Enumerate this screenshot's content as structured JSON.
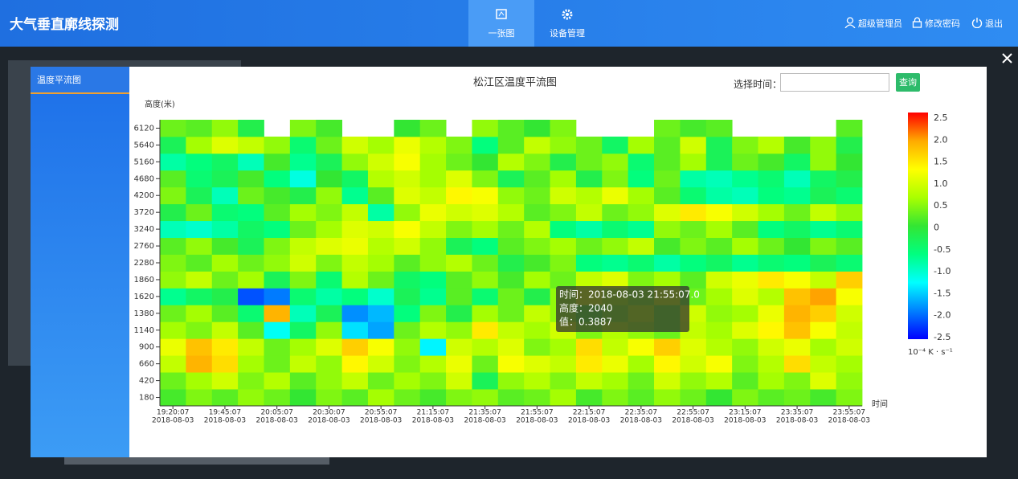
{
  "header": {
    "title": "大气垂直廓线探测",
    "nav": [
      "一张图",
      "设备管理"
    ],
    "user": [
      "超级管理员",
      "修改密码",
      "退出"
    ]
  },
  "modal": {
    "tab": "温度平流图",
    "time_label": "选择时间：",
    "button": "查询"
  },
  "chart_data": {
    "type": "heatmap",
    "title": "松江区温度平流图",
    "ylabel": "高度(米)",
    "xlabel": "时间",
    "categories": [
      "19:20:07",
      null,
      "19:45:07",
      null,
      "20:05:07",
      null,
      "20:30:07",
      null,
      "20:55:07",
      null,
      "21:15:07",
      null,
      "21:35:07",
      null,
      "21:55:07",
      null,
      "22:15:07",
      null,
      "22:35:07",
      null,
      "22:55:07",
      null,
      "23:15:07",
      null,
      "23:35:07",
      null,
      "23:55:07"
    ],
    "x_dates": [
      "2018-08-03",
      null,
      "2018-08-03",
      null,
      "2018-08-03",
      null,
      "2018-08-03",
      null,
      "2018-08-03",
      null,
      "2018-08-03",
      null,
      "2018-08-03",
      null,
      "2018-08-03",
      null,
      "2018-08-03",
      null,
      "2018-08-03",
      null,
      "2018-08-03",
      null,
      "2018-08-03",
      null,
      "2018-08-03",
      null,
      "2018-08-03"
    ],
    "y_categories": [
      180,
      420,
      660,
      900,
      1140,
      1380,
      1620,
      1860,
      2280,
      2760,
      3240,
      3720,
      4200,
      4680,
      5160,
      5640,
      6120
    ],
    "values": [
      [
        0.1,
        0.4,
        0.2,
        0.5,
        0.3,
        0.0,
        0.4,
        0.2,
        0.6,
        0.3,
        0.1,
        0.4,
        0.5,
        0.2,
        0.3,
        0.6,
        0.1,
        0.4,
        0.2,
        0.5,
        0.3,
        0.0,
        0.4,
        0.2,
        0.3,
        0.1,
        0.4
      ],
      [
        0.3,
        0.6,
        0.9,
        0.4,
        0.7,
        0.2,
        0.5,
        0.8,
        0.3,
        0.6,
        0.4,
        0.9,
        -0.3,
        0.5,
        0.7,
        0.4,
        0.8,
        0.6,
        0.3,
        0.9,
        0.5,
        0.7,
        0.2,
        0.6,
        0.4,
        1.0,
        0.5
      ],
      [
        0.8,
        1.8,
        1.5,
        0.6,
        0.3,
        0.8,
        0.5,
        1.3,
        0.9,
        0.4,
        0.7,
        1.1,
        0.3,
        1.2,
        1.0,
        0.8,
        1.4,
        1.1,
        0.6,
        1.3,
        0.9,
        1.2,
        0.4,
        0.7,
        1.5,
        0.8,
        0.6
      ],
      [
        1.1,
        1.7,
        1.4,
        0.8,
        0.3,
        0.6,
        1.0,
        1.6,
        1.2,
        0.5,
        -1.3,
        0.9,
        0.7,
        1.0,
        0.4,
        0.6,
        1.5,
        0.8,
        1.2,
        1.6,
        1.0,
        0.7,
        0.5,
        0.9,
        1.1,
        0.6,
        0.9
      ],
      [
        0.6,
        0.4,
        0.8,
        0.2,
        -1.2,
        -0.4,
        0.5,
        -1.4,
        -1.7,
        0.3,
        0.7,
        0.5,
        1.4,
        0.8,
        0.6,
        0.9,
        0.4,
        0.7,
        0.5,
        0.3,
        0.8,
        0.6,
        1.0,
        1.3,
        1.7,
        1.2,
        0.8
      ],
      [
        0.3,
        0.6,
        0.2,
        -0.5,
        1.8,
        -0.9,
        -0.3,
        -1.8,
        -1.6,
        -0.6,
        0.4,
        -0.2,
        0.6,
        0.3,
        0.8,
        0.5,
        0.2,
        0.4,
        0.7,
        0.3,
        0.9,
        0.5,
        0.6,
        1.1,
        1.8,
        1.6,
        0.9
      ],
      [
        -0.7,
        -0.4,
        -0.2,
        -2.1,
        -1.9,
        -0.5,
        -0.8,
        -0.6,
        -1.0,
        -0.3,
        -0.7,
        0.2,
        -0.5,
        0.3,
        -0.2,
        0.5,
        0.9,
        0.6,
        0.4,
        0.8,
        0.3,
        0.6,
        1.0,
        0.7,
        1.7,
        1.9,
        1.2
      ],
      [
        0.5,
        0.8,
        0.3,
        0.6,
        -0.3,
        0.4,
        -0.5,
        0.7,
        0.3,
        -0.4,
        -0.6,
        0.2,
        0.5,
        0.1,
        0.6,
        0.3,
        0.8,
        1.0,
        0.4,
        0.6,
        0.2,
        0.9,
        1.1,
        1.4,
        1.2,
        0.8,
        1.6
      ],
      [
        0.4,
        0.2,
        0.6,
        0.3,
        0.5,
        0.9,
        0.4,
        0.8,
        0.6,
        0.2,
        0.5,
        0.7,
        0.3,
        -0.2,
        0.1,
        0.4,
        -0.6,
        -0.7,
        -0.5,
        -0.8,
        -0.6,
        -0.4,
        -0.7,
        -0.5,
        -0.6,
        -0.3,
        -0.5
      ],
      [
        0.2,
        0.5,
        0.1,
        -0.3,
        0.4,
        0.8,
        1.0,
        1.1,
        0.7,
        0.9,
        0.5,
        -0.3,
        -0.6,
        0.2,
        0.4,
        0.6,
        0.3,
        0.5,
        0.8,
        0.1,
        0.4,
        0.2,
        0.6,
        0.3,
        0.0,
        0.4,
        0.2
      ],
      [
        -0.9,
        -1.0,
        -0.8,
        -0.4,
        -0.6,
        0.3,
        0.6,
        1.0,
        0.9,
        1.2,
        0.8,
        0.4,
        0.6,
        0.3,
        0.7,
        -0.6,
        -0.8,
        -0.5,
        -0.7,
        0.5,
        0.3,
        0.6,
        0.2,
        -0.6,
        -0.4,
        -0.7,
        -0.5
      ],
      [
        -0.2,
        0.3,
        -0.5,
        -0.6,
        0.2,
        0.6,
        0.4,
        0.8,
        -0.8,
        0.5,
        1.1,
        0.9,
        1.0,
        0.7,
        0.2,
        0.4,
        0.8,
        0.3,
        0.5,
        1.0,
        1.4,
        1.2,
        0.9,
        0.6,
        0.3,
        0.8,
        0.5
      ],
      [
        0.4,
        -0.3,
        -0.9,
        0.3,
        0.1,
        -0.2,
        0.5,
        -0.7,
        0.2,
        1.0,
        0.8,
        1.3,
        1.2,
        0.5,
        0.3,
        0.9,
        0.7,
        1.1,
        0.6,
        0.2,
        -0.5,
        -0.8,
        -0.9,
        -0.6,
        -0.7,
        -0.3,
        -0.5
      ],
      [
        0.2,
        -0.5,
        -0.3,
        0.1,
        -0.6,
        -1.1,
        0.0,
        -0.4,
        0.7,
        0.9,
        0.6,
        1.0,
        0.4,
        -0.3,
        0.2,
        0.6,
        -0.2,
        0.4,
        -0.6,
        0.3,
        -0.8,
        -0.9,
        -0.7,
        -0.5,
        -0.9,
        -0.4,
        -0.2
      ],
      [
        -0.8,
        -0.6,
        -0.4,
        -0.9,
        0.1,
        -0.7,
        -0.3,
        0.5,
        0.9,
        1.2,
        0.6,
        0.3,
        0.0,
        0.7,
        0.4,
        -0.2,
        0.3,
        0.5,
        -0.5,
        0.2,
        0.6,
        -0.3,
        0.3,
        0.1,
        -0.4,
        0.5,
        0.0
      ],
      [
        -0.3,
        0.6,
        1.0,
        0.8,
        0.5,
        -0.5,
        0.3,
        0.9,
        0.6,
        1.1,
        0.7,
        0.4,
        -0.6,
        0.2,
        0.8,
        0.5,
        0.3,
        -0.4,
        0.6,
        0.2,
        0.9,
        -0.3,
        0.4,
        0.7,
        0.1,
        0.5,
        -0.2
      ],
      [
        0.3,
        0.2,
        0.5,
        -0.2,
        null,
        0.4,
        0.1,
        null,
        null,
        0.0,
        0.3,
        null,
        0.5,
        0.2,
        0.0,
        0.4,
        null,
        null,
        null,
        0.3,
        0.1,
        0.2,
        null,
        null,
        null,
        null,
        0.2
      ]
    ],
    "zlim": [
      -2.5,
      2.5
    ],
    "zticks": [
      2.5,
      {
        "value": 2,
        "label": "2.0"
      },
      1.5,
      {
        "value": 1,
        "label": "1.0"
      },
      0.5,
      0,
      -0.5,
      {
        "value": -1,
        "label": "-1.0"
      },
      -1.5,
      {
        "value": -2,
        "label": "-2.0"
      },
      -2.5
    ],
    "zunit": "10⁻⁴ K · s⁻¹",
    "colormap": [
      "#0000ff",
      "#0080ff",
      "#00ffff",
      "#00ff80",
      "#33e633",
      "#aaff00",
      "#ffff00",
      "#ffaa00",
      "#ff0000"
    ],
    "tooltip": [
      "时间：2018-08-03 21:55:07.0",
      "高度：2040",
      "值：0.3887"
    ]
  }
}
